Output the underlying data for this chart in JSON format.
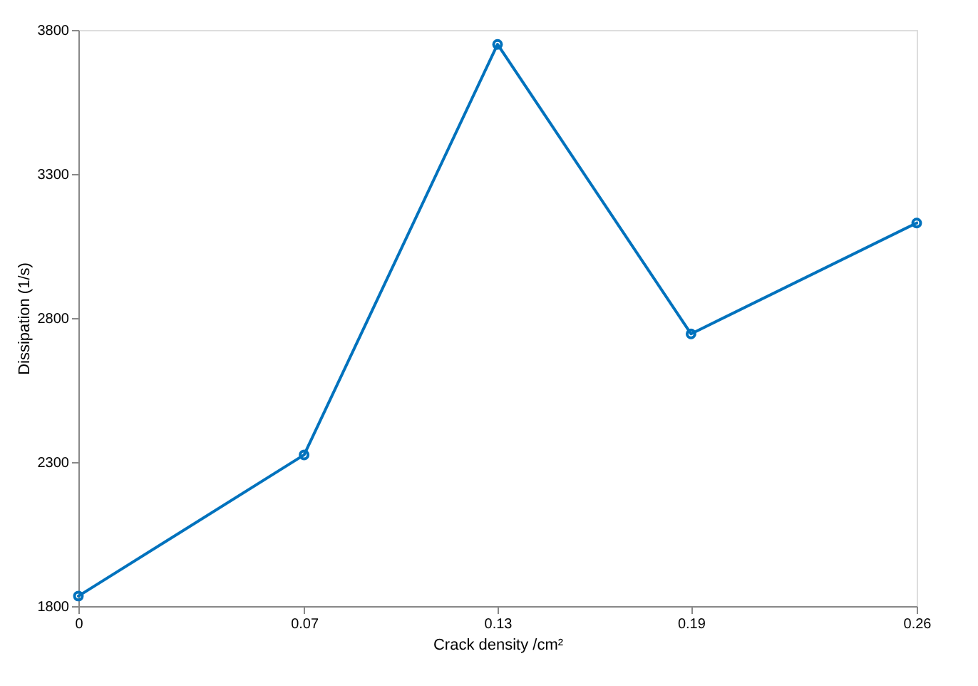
{
  "chart_data": {
    "type": "line",
    "xlabel": "Crack density /cm²",
    "ylabel": "Dissipation (1/s)",
    "x": [
      0,
      0.07,
      0.13,
      0.19,
      0.26
    ],
    "series": [
      {
        "color": "#0072bd",
        "values": [
          1835,
          2325,
          3750,
          2745,
          3130
        ]
      }
    ],
    "xlim": [
      0,
      0.26
    ],
    "xticks": [
      0,
      0.07,
      0.13,
      0.19,
      0.26
    ],
    "ylim": [
      1800,
      3800
    ],
    "yticks": [
      1800,
      2300,
      2800,
      3300,
      3800
    ],
    "grid": false,
    "marker": "circle",
    "line_style": "solid"
  }
}
